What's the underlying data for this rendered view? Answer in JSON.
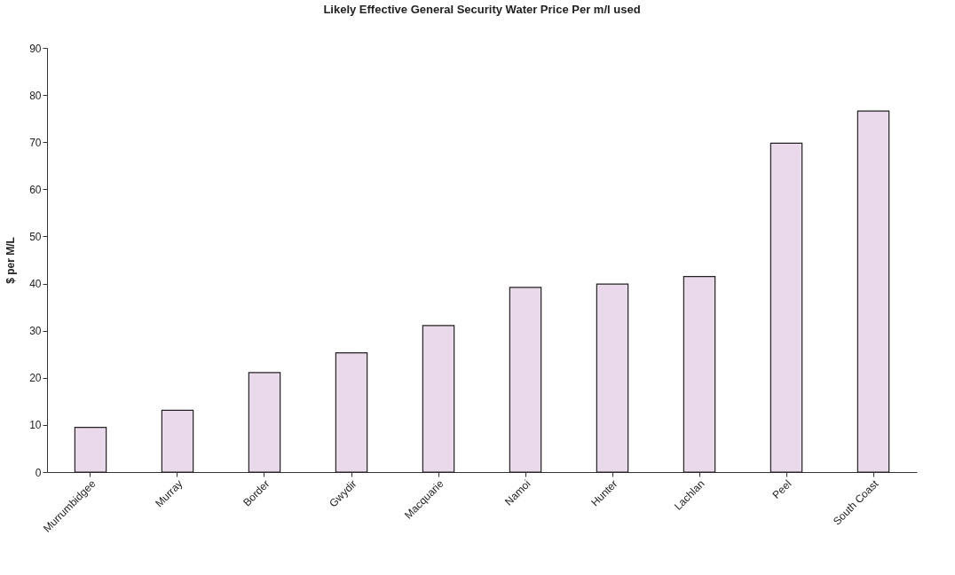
{
  "chart_data": {
    "type": "bar",
    "title": "Likely Effective General Security Water Price Per m/l used",
    "ylabel": "$ per M/L",
    "categories": [
      "Murrumbidgee",
      "Murray",
      "Border",
      "Gwydir",
      "Macquarie",
      "Namoi",
      "Hunter",
      "Lachlan",
      "Peel",
      "South Coast"
    ],
    "values": [
      9.5,
      13.1,
      21.1,
      25.3,
      31.1,
      39.2,
      39.9,
      41.5,
      69.8,
      76.6
    ],
    "color": "#ead9ea",
    "ylim": [
      0,
      90
    ],
    "yticks": [
      0,
      10,
      20,
      30,
      40,
      50,
      60,
      70,
      80,
      90
    ],
    "grid": false
  }
}
